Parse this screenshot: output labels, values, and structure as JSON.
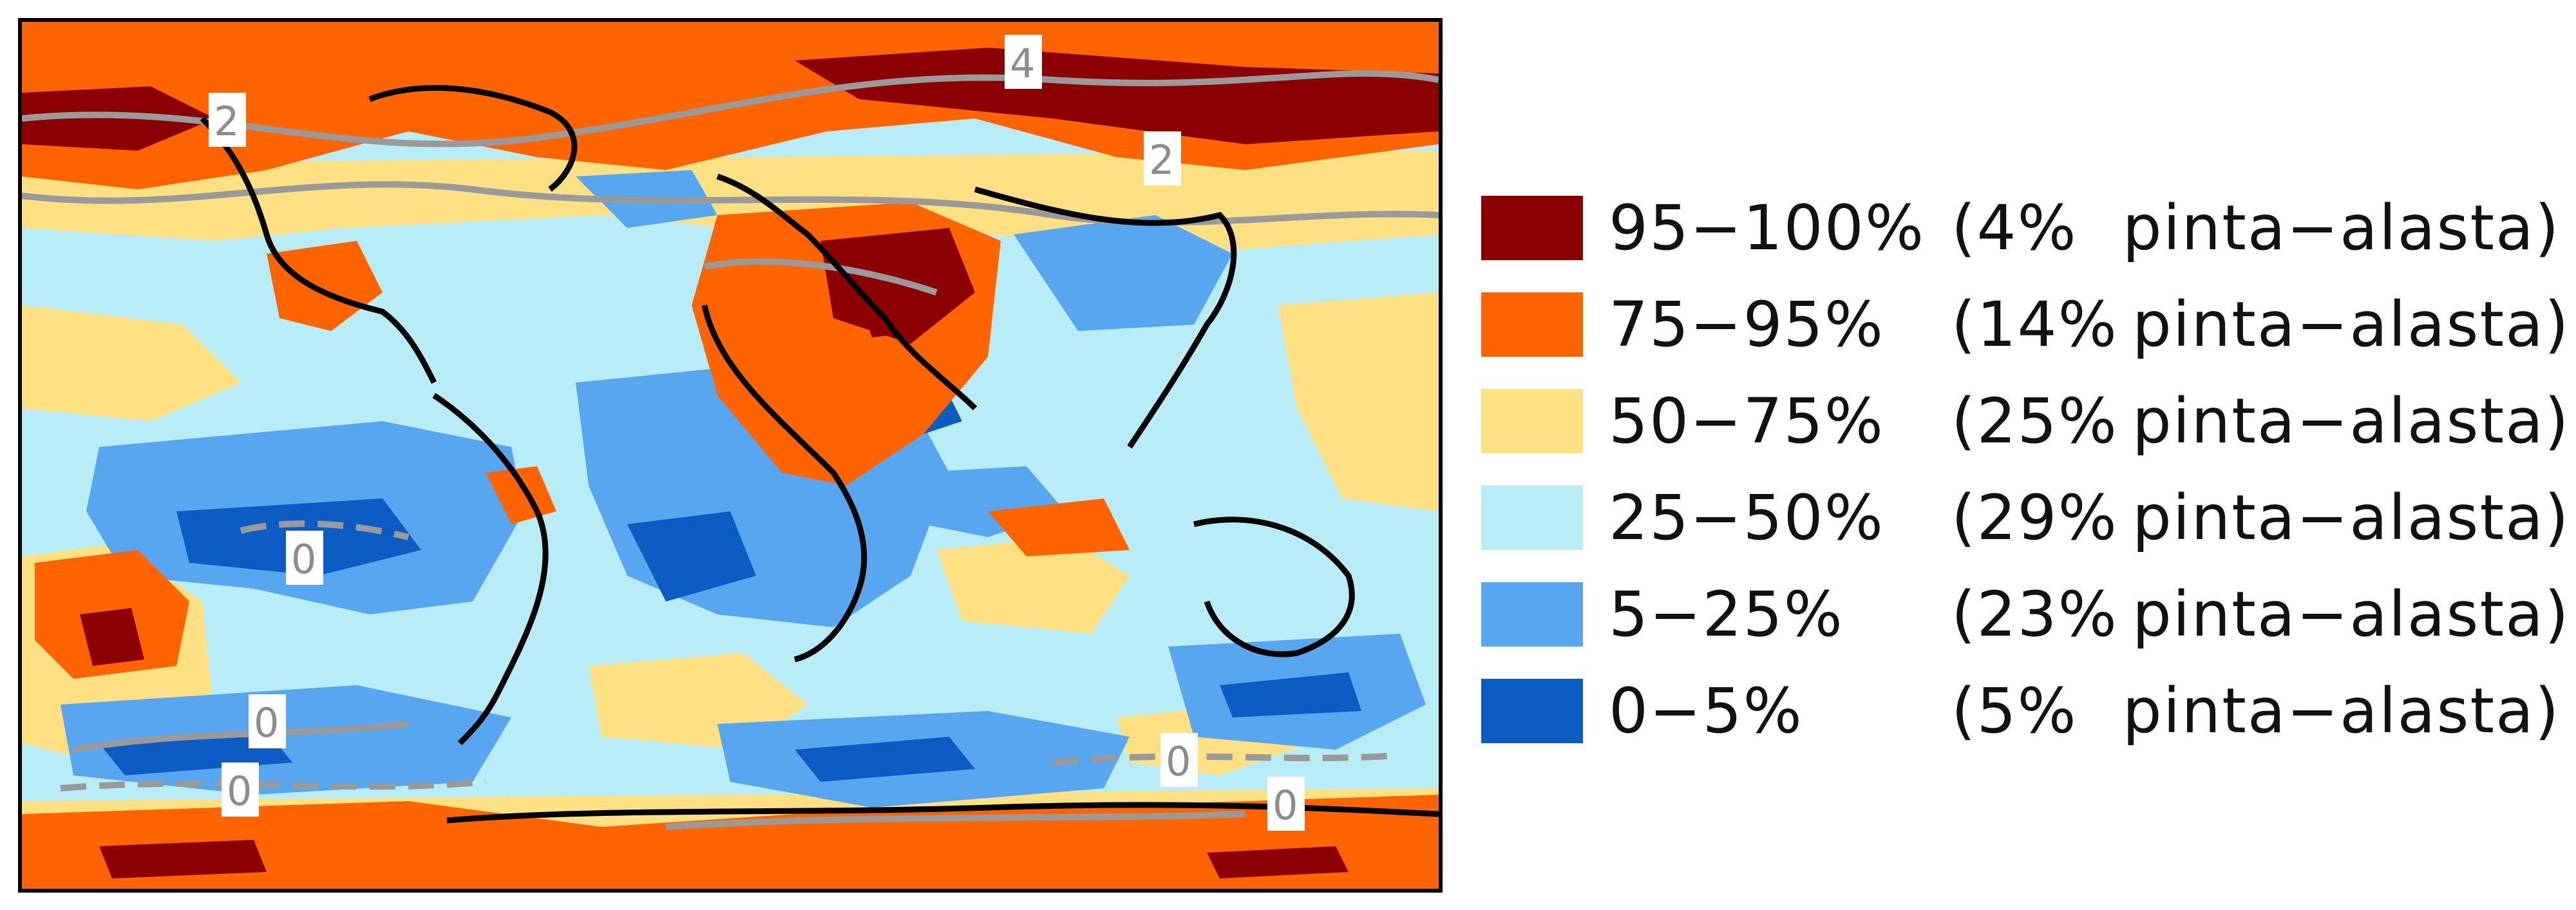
{
  "colors": {
    "band_95_100": "#8b0000",
    "band_75_95": "#ff6400",
    "band_50_75": "#ffe082",
    "band_25_50": "#b8ecf6",
    "band_5_25": "#58a6f0",
    "band_0_5": "#0d5cc4",
    "coastline": "#000000",
    "contour": "#9a9a9a"
  },
  "legend": [
    {
      "range": "95−100%",
      "share": "(4%",
      "suffix": "pinta−alasta)",
      "color": "#8b0000"
    },
    {
      "range": "75−95%",
      "share": "(14%",
      "suffix": "pinta−alasta)",
      "color": "#ff6400"
    },
    {
      "range": "50−75%",
      "share": "(25%",
      "suffix": "pinta−alasta)",
      "color": "#ffe082"
    },
    {
      "range": "25−50%",
      "share": "(29%",
      "suffix": "pinta−alasta)",
      "color": "#b8ecf6"
    },
    {
      "range": "5−25%",
      "share": "(23%",
      "suffix": "pinta−alasta)",
      "color": "#58a6f0"
    },
    {
      "range": "0−5%",
      "share": "(5%",
      "suffix": "pinta−alasta)",
      "color": "#0d5cc4"
    }
  ],
  "contour_labels": [
    "4",
    "2",
    "2",
    "0",
    "0",
    "0",
    "0",
    "0"
  ]
}
